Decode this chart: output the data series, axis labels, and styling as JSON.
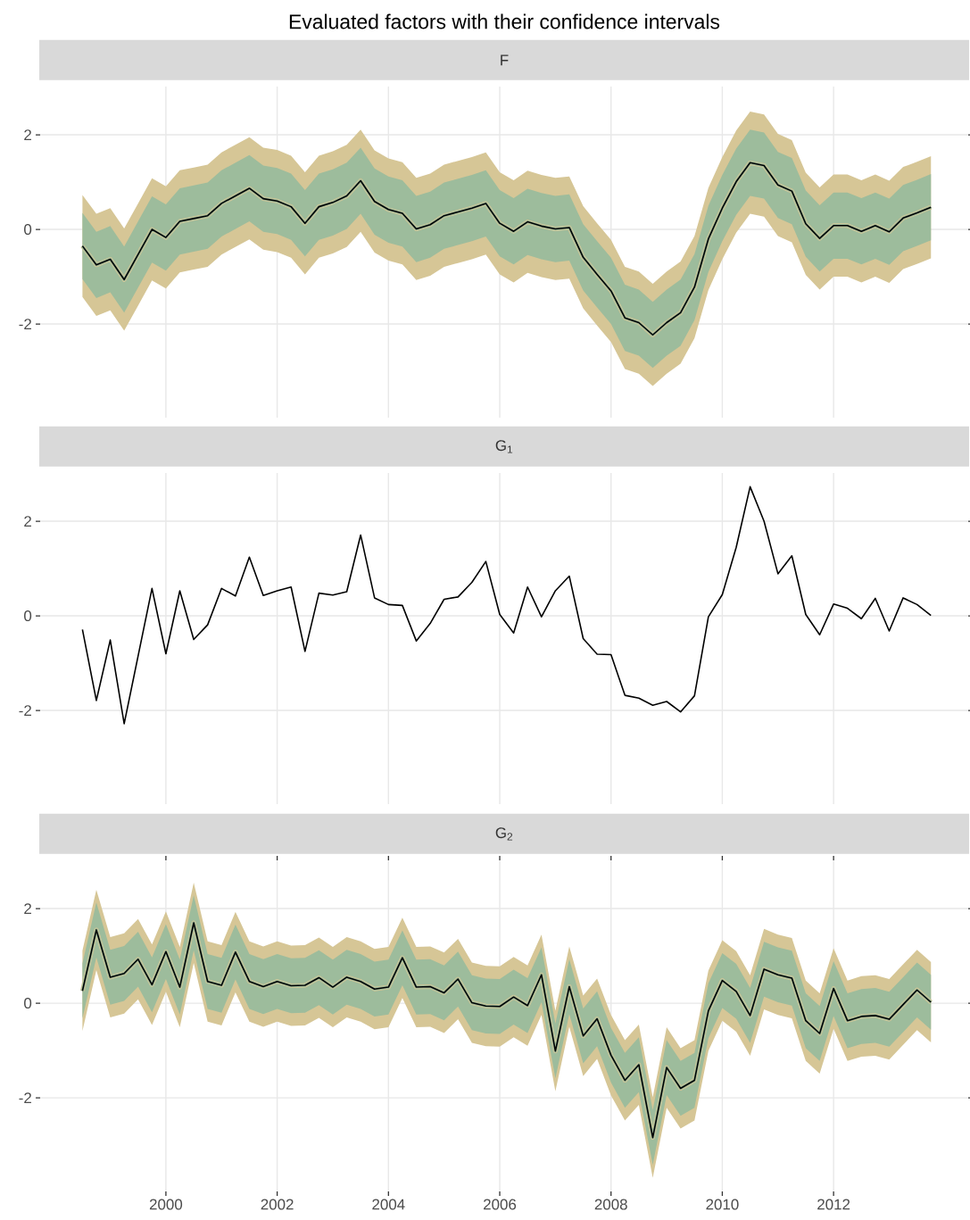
{
  "chart_data": [
    {
      "type": "line",
      "title": "Evaluated factors with their confidence intervals",
      "subtitle": "F",
      "grid": true,
      "tick_labels": "y",
      "xlim": [
        1997.74,
        2014.42
      ],
      "ylim": [
        -3.98,
        3.02
      ],
      "xticks": [
        2000,
        2002,
        2004,
        2006,
        2008,
        2010,
        2012
      ],
      "yticks": [
        -2,
        0,
        2
      ],
      "x": [
        1998.5,
        1998.75,
        1999,
        1999.25,
        1999.5,
        1999.75,
        2000,
        2000.25,
        2000.5,
        2000.75,
        2001,
        2001.25,
        2001.5,
        2001.75,
        2002,
        2002.25,
        2002.5,
        2002.75,
        2003,
        2003.25,
        2003.5,
        2003.75,
        2004,
        2004.25,
        2004.5,
        2004.75,
        2005,
        2005.25,
        2005.5,
        2005.75,
        2006,
        2006.25,
        2006.5,
        2006.75,
        2007,
        2007.25,
        2007.5,
        2007.75,
        2008,
        2008.25,
        2008.5,
        2008.75,
        2009,
        2009.25,
        2009.5,
        2009.75,
        2010,
        2010.25,
        2010.5,
        2010.75,
        2011,
        2011.25,
        2011.5,
        2011.75,
        2012,
        2012.25,
        2012.5,
        2012.75,
        2013,
        2013.25,
        2013.5,
        2013.75
      ],
      "series": [
        {
          "color": "#d6c696",
          "values": [
            -0.35,
            -0.75,
            -0.63,
            -1.06,
            -0.53,
            0.0,
            -0.17,
            0.17,
            0.23,
            0.29,
            0.55,
            0.71,
            0.87,
            0.65,
            0.6,
            0.48,
            0.13,
            0.48,
            0.57,
            0.71,
            1.03,
            0.59,
            0.42,
            0.34,
            0.01,
            0.1,
            0.29,
            0.37,
            0.45,
            0.55,
            0.13,
            -0.04,
            0.16,
            0.07,
            0.01,
            0.04,
            -0.59,
            -0.95,
            -1.3,
            -1.87,
            -1.97,
            -2.23,
            -1.97,
            -1.76,
            -1.22,
            -0.2,
            0.45,
            1.01,
            1.41,
            1.35,
            0.94,
            0.81,
            0.12,
            -0.19,
            0.08,
            0.08,
            -0.04,
            0.08,
            -0.05,
            0.24,
            0.35,
            0.47
          ],
          "upper": [
            0.73,
            0.33,
            0.45,
            0.02,
            0.55,
            1.08,
            0.91,
            1.25,
            1.31,
            1.37,
            1.63,
            1.79,
            1.95,
            1.73,
            1.68,
            1.56,
            1.21,
            1.56,
            1.65,
            1.79,
            2.11,
            1.67,
            1.5,
            1.42,
            1.09,
            1.18,
            1.37,
            1.45,
            1.53,
            1.63,
            1.21,
            1.04,
            1.24,
            1.15,
            1.09,
            1.12,
            0.49,
            0.13,
            -0.22,
            -0.79,
            -0.89,
            -1.15,
            -0.89,
            -0.68,
            -0.14,
            0.88,
            1.53,
            2.09,
            2.49,
            2.43,
            2.02,
            1.89,
            1.2,
            0.89,
            1.16,
            1.16,
            1.04,
            1.16,
            1.03,
            1.32,
            1.43,
            1.55
          ],
          "lower": [
            -1.43,
            -1.83,
            -1.71,
            -2.14,
            -1.61,
            -1.08,
            -1.25,
            -0.91,
            -0.85,
            -0.79,
            -0.53,
            -0.37,
            -0.21,
            -0.43,
            -0.48,
            -0.6,
            -0.95,
            -0.6,
            -0.51,
            -0.37,
            -0.05,
            -0.49,
            -0.66,
            -0.74,
            -1.07,
            -0.98,
            -0.79,
            -0.71,
            -0.63,
            -0.53,
            -0.95,
            -1.12,
            -0.92,
            -1.01,
            -1.07,
            -1.04,
            -1.67,
            -2.03,
            -2.38,
            -2.95,
            -3.05,
            -3.31,
            -3.05,
            -2.84,
            -2.3,
            -1.28,
            -0.63,
            -0.07,
            0.33,
            0.27,
            -0.14,
            -0.27,
            -0.96,
            -1.27,
            -1.0,
            -1.0,
            -1.12,
            -1.0,
            -1.13,
            -0.84,
            -0.73,
            -0.61
          ]
        },
        {
          "color": "#9dbc9c",
          "values": [
            -0.35,
            -0.75,
            -0.63,
            -1.06,
            -0.53,
            0.0,
            -0.17,
            0.17,
            0.23,
            0.29,
            0.55,
            0.71,
            0.87,
            0.65,
            0.6,
            0.48,
            0.13,
            0.48,
            0.57,
            0.71,
            1.03,
            0.59,
            0.42,
            0.34,
            0.01,
            0.1,
            0.29,
            0.37,
            0.45,
            0.55,
            0.13,
            -0.04,
            0.16,
            0.07,
            0.01,
            0.04,
            -0.59,
            -0.95,
            -1.3,
            -1.87,
            -1.97,
            -2.23,
            -1.97,
            -1.76,
            -1.22,
            -0.2,
            0.45,
            1.01,
            1.41,
            1.35,
            0.94,
            0.81,
            0.12,
            -0.19,
            0.08,
            0.08,
            -0.04,
            0.08,
            -0.05,
            0.24,
            0.35,
            0.47
          ],
          "upper": [
            0.35,
            -0.05,
            0.07,
            -0.36,
            0.17,
            0.7,
            0.53,
            0.87,
            0.93,
            0.99,
            1.25,
            1.41,
            1.57,
            1.35,
            1.3,
            1.18,
            0.83,
            1.18,
            1.27,
            1.41,
            1.73,
            1.29,
            1.12,
            1.04,
            0.71,
            0.8,
            0.99,
            1.07,
            1.15,
            1.25,
            0.83,
            0.66,
            0.86,
            0.77,
            0.71,
            0.74,
            0.11,
            -0.25,
            -0.6,
            -1.17,
            -1.27,
            -1.53,
            -1.27,
            -1.06,
            -0.52,
            0.5,
            1.15,
            1.71,
            2.11,
            2.05,
            1.64,
            1.51,
            0.82,
            0.51,
            0.78,
            0.78,
            0.66,
            0.78,
            0.65,
            0.94,
            1.05,
            1.17
          ],
          "lower": [
            -1.05,
            -1.45,
            -1.33,
            -1.76,
            -1.23,
            -0.7,
            -0.87,
            -0.53,
            -0.47,
            -0.41,
            -0.15,
            0.01,
            0.17,
            -0.05,
            -0.1,
            -0.22,
            -0.57,
            -0.22,
            -0.13,
            0.01,
            0.33,
            -0.11,
            -0.28,
            -0.36,
            -0.69,
            -0.6,
            -0.41,
            -0.33,
            -0.25,
            -0.15,
            -0.57,
            -0.74,
            -0.54,
            -0.63,
            -0.69,
            -0.66,
            -1.29,
            -1.65,
            -2.0,
            -2.57,
            -2.67,
            -2.93,
            -2.67,
            -2.46,
            -1.92,
            -0.9,
            -0.25,
            0.31,
            0.71,
            0.65,
            0.24,
            0.11,
            -0.58,
            -0.89,
            -0.62,
            -0.62,
            -0.74,
            -0.62,
            -0.75,
            -0.46,
            -0.35,
            -0.23
          ]
        },
        {
          "color": "#000000",
          "values": [
            -0.35,
            -0.75,
            -0.63,
            -1.06,
            -0.53,
            0.0,
            -0.17,
            0.17,
            0.23,
            0.29,
            0.55,
            0.71,
            0.87,
            0.65,
            0.6,
            0.48,
            0.13,
            0.48,
            0.57,
            0.71,
            1.03,
            0.59,
            0.42,
            0.34,
            0.01,
            0.1,
            0.29,
            0.37,
            0.45,
            0.55,
            0.13,
            -0.04,
            0.16,
            0.07,
            0.01,
            0.04,
            -0.59,
            -0.95,
            -1.3,
            -1.87,
            -1.97,
            -2.23,
            -1.97,
            -1.76,
            -1.22,
            -0.2,
            0.45,
            1.01,
            1.41,
            1.35,
            0.94,
            0.81,
            0.12,
            -0.19,
            0.08,
            0.08,
            -0.04,
            0.08,
            -0.05,
            0.24,
            0.35,
            0.47
          ]
        }
      ]
    },
    {
      "type": "line",
      "subtitle": "G$_{1}$",
      "grid": true,
      "tick_labels": "y",
      "xlim": [
        1997.74,
        2014.42
      ],
      "ylim": [
        -3.98,
        3.02
      ],
      "xticks": [
        2000,
        2002,
        2004,
        2006,
        2008,
        2010,
        2012
      ],
      "yticks": [
        -2,
        0,
        2
      ],
      "x": [
        1998.5,
        1998.75,
        1999,
        1999.25,
        1999.5,
        1999.75,
        2000,
        2000.25,
        2000.5,
        2000.75,
        2001,
        2001.25,
        2001.5,
        2001.75,
        2002,
        2002.25,
        2002.5,
        2002.75,
        2003,
        2003.25,
        2003.5,
        2003.75,
        2004,
        2004.25,
        2004.5,
        2004.75,
        2005,
        2005.25,
        2005.5,
        2005.75,
        2006,
        2006.25,
        2006.5,
        2006.75,
        2007,
        2007.25,
        2007.5,
        2007.75,
        2008,
        2008.25,
        2008.5,
        2008.75,
        2009,
        2009.25,
        2009.5,
        2009.75,
        2010,
        2010.25,
        2010.5,
        2010.75,
        2011,
        2011.25,
        2011.5,
        2011.75,
        2012,
        2012.25,
        2012.5,
        2012.75,
        2013,
        2013.25,
        2013.5,
        2013.75
      ],
      "series": [
        {
          "color": "#000000",
          "values": [
            -0.29,
            -1.79,
            -0.51,
            -2.28,
            -0.85,
            0.58,
            -0.8,
            0.53,
            -0.5,
            -0.19,
            0.58,
            0.42,
            1.24,
            0.43,
            0.53,
            0.61,
            -0.75,
            0.48,
            0.44,
            0.51,
            1.71,
            0.38,
            0.24,
            0.22,
            -0.53,
            -0.16,
            0.35,
            0.4,
            0.71,
            1.15,
            0.03,
            -0.36,
            0.61,
            -0.02,
            0.53,
            0.84,
            -0.48,
            -0.81,
            -0.82,
            -1.68,
            -1.74,
            -1.89,
            -1.81,
            -2.03,
            -1.69,
            -0.02,
            0.45,
            1.45,
            2.73,
            2.0,
            0.89,
            1.27,
            0.03,
            -0.4,
            0.25,
            0.16,
            -0.06,
            0.37,
            -0.32,
            0.38,
            0.24,
            0.01
          ]
        }
      ]
    },
    {
      "type": "line",
      "subtitle": "G$_{2}$",
      "grid": true,
      "xlim": [
        1997.74,
        2014.42
      ],
      "ylim": [
        -3.98,
        3.02
      ],
      "xticks": [
        2000,
        2002,
        2004,
        2006,
        2008,
        2010,
        2012
      ],
      "yticks": [
        -2,
        0,
        2
      ],
      "x": [
        1998.5,
        1998.75,
        1999,
        1999.25,
        1999.5,
        1999.75,
        2000,
        2000.25,
        2000.5,
        2000.75,
        2001,
        2001.25,
        2001.5,
        2001.75,
        2002,
        2002.25,
        2002.5,
        2002.75,
        2003,
        2003.25,
        2003.5,
        2003.75,
        2004,
        2004.25,
        2004.5,
        2004.75,
        2005,
        2005.25,
        2005.5,
        2005.75,
        2006,
        2006.25,
        2006.5,
        2006.75,
        2007,
        2007.25,
        2007.5,
        2007.75,
        2008,
        2008.25,
        2008.5,
        2008.75,
        2009,
        2009.25,
        2009.5,
        2009.75,
        2010,
        2010.25,
        2010.5,
        2010.75,
        2011,
        2011.25,
        2011.5,
        2011.75,
        2012,
        2012.25,
        2012.5,
        2012.75,
        2013,
        2013.25,
        2013.5,
        2013.75
      ],
      "series": [
        {
          "color": "#d6c696",
          "values": [
            0.26,
            1.55,
            0.55,
            0.63,
            0.93,
            0.39,
            1.09,
            0.34,
            1.7,
            0.46,
            0.38,
            1.08,
            0.46,
            0.35,
            0.46,
            0.37,
            0.38,
            0.54,
            0.34,
            0.55,
            0.46,
            0.3,
            0.34,
            0.96,
            0.34,
            0.35,
            0.22,
            0.51,
            0.01,
            -0.06,
            -0.07,
            0.13,
            -0.05,
            0.6,
            -1.01,
            0.35,
            -0.69,
            -0.33,
            -1.1,
            -1.63,
            -1.3,
            -2.84,
            -1.36,
            -1.8,
            -1.63,
            -0.16,
            0.48,
            0.25,
            -0.26,
            0.72,
            0.6,
            0.53,
            -0.37,
            -0.64,
            0.31,
            -0.37,
            -0.28,
            -0.26,
            -0.34,
            -0.03,
            0.28,
            0.02
          ],
          "upper": [
            1.11,
            2.4,
            1.4,
            1.48,
            1.78,
            1.24,
            1.94,
            1.19,
            2.55,
            1.31,
            1.23,
            1.93,
            1.31,
            1.2,
            1.31,
            1.22,
            1.23,
            1.39,
            1.19,
            1.4,
            1.31,
            1.15,
            1.19,
            1.81,
            1.19,
            1.2,
            1.07,
            1.36,
            0.86,
            0.79,
            0.78,
            0.98,
            0.8,
            1.45,
            -0.16,
            1.2,
            0.16,
            0.52,
            -0.25,
            -0.78,
            -0.45,
            -1.99,
            -0.51,
            -0.95,
            -0.78,
            0.69,
            1.33,
            1.1,
            0.59,
            1.57,
            1.45,
            1.38,
            0.48,
            0.21,
            1.16,
            0.48,
            0.57,
            0.59,
            0.51,
            0.82,
            1.13,
            0.87
          ],
          "lower": [
            -0.59,
            0.7,
            -0.3,
            -0.22,
            0.08,
            -0.46,
            0.24,
            -0.51,
            0.85,
            -0.39,
            -0.47,
            0.23,
            -0.39,
            -0.5,
            -0.39,
            -0.48,
            -0.47,
            -0.31,
            -0.51,
            -0.3,
            -0.39,
            -0.55,
            -0.51,
            0.11,
            -0.51,
            -0.5,
            -0.63,
            -0.34,
            -0.84,
            -0.91,
            -0.92,
            -0.72,
            -0.9,
            -0.25,
            -1.86,
            -0.5,
            -1.54,
            -1.18,
            -1.95,
            -2.48,
            -2.15,
            -3.69,
            -2.21,
            -2.65,
            -2.48,
            -1.01,
            -0.37,
            -0.6,
            -1.11,
            -0.13,
            -0.25,
            -0.32,
            -1.22,
            -1.49,
            -0.54,
            -1.22,
            -1.13,
            -1.11,
            -1.19,
            -0.88,
            -0.57,
            -0.83
          ]
        },
        {
          "color": "#9dbc9c",
          "values": [
            0.26,
            1.55,
            0.55,
            0.63,
            0.93,
            0.39,
            1.09,
            0.34,
            1.7,
            0.46,
            0.38,
            1.08,
            0.46,
            0.35,
            0.46,
            0.37,
            0.38,
            0.54,
            0.34,
            0.55,
            0.46,
            0.3,
            0.34,
            0.96,
            0.34,
            0.35,
            0.22,
            0.51,
            0.01,
            -0.06,
            -0.07,
            0.13,
            -0.05,
            0.6,
            -1.01,
            0.35,
            -0.69,
            -0.33,
            -1.1,
            -1.63,
            -1.3,
            -2.84,
            -1.36,
            -1.8,
            -1.63,
            -0.16,
            0.48,
            0.25,
            -0.26,
            0.72,
            0.6,
            0.53,
            -0.37,
            -0.64,
            0.31,
            -0.37,
            -0.28,
            -0.26,
            -0.34,
            -0.03,
            0.28,
            0.02
          ],
          "upper": [
            0.84,
            2.13,
            1.13,
            1.21,
            1.51,
            0.97,
            1.67,
            0.92,
            2.28,
            1.04,
            0.96,
            1.66,
            1.04,
            0.93,
            1.04,
            0.95,
            0.96,
            1.12,
            0.92,
            1.13,
            1.04,
            0.88,
            0.92,
            1.54,
            0.92,
            0.93,
            0.8,
            1.09,
            0.59,
            0.52,
            0.51,
            0.71,
            0.53,
            1.18,
            -0.43,
            0.93,
            -0.11,
            0.25,
            -0.52,
            -1.05,
            -0.72,
            -2.26,
            -0.78,
            -1.22,
            -1.05,
            0.42,
            1.06,
            0.83,
            0.32,
            1.3,
            1.18,
            1.11,
            0.21,
            -0.06,
            0.89,
            0.21,
            0.3,
            0.32,
            0.24,
            0.55,
            0.86,
            0.6
          ],
          "lower": [
            -0.32,
            0.97,
            -0.03,
            0.05,
            0.35,
            -0.19,
            0.51,
            -0.24,
            1.12,
            -0.12,
            -0.2,
            0.5,
            -0.12,
            -0.23,
            -0.12,
            -0.21,
            -0.2,
            -0.04,
            -0.24,
            -0.03,
            -0.12,
            -0.28,
            -0.24,
            0.38,
            -0.24,
            -0.23,
            -0.36,
            -0.07,
            -0.57,
            -0.64,
            -0.65,
            -0.45,
            -0.63,
            0.02,
            -1.59,
            -0.23,
            -1.27,
            -0.91,
            -1.68,
            -2.21,
            -1.88,
            -3.42,
            -1.94,
            -2.38,
            -2.21,
            -0.74,
            -0.1,
            -0.33,
            -0.84,
            0.14,
            0.02,
            -0.05,
            -0.95,
            -1.22,
            -0.27,
            -0.95,
            -0.86,
            -0.84,
            -0.92,
            -0.61,
            -0.3,
            -0.56
          ]
        },
        {
          "color": "#000000",
          "values": [
            0.26,
            1.55,
            0.55,
            0.63,
            0.93,
            0.39,
            1.09,
            0.34,
            1.7,
            0.46,
            0.38,
            1.08,
            0.46,
            0.35,
            0.46,
            0.37,
            0.38,
            0.54,
            0.34,
            0.55,
            0.46,
            0.3,
            0.34,
            0.96,
            0.34,
            0.35,
            0.22,
            0.51,
            0.01,
            -0.06,
            -0.07,
            0.13,
            -0.05,
            0.6,
            -1.01,
            0.35,
            -0.69,
            -0.33,
            -1.1,
            -1.63,
            -1.3,
            -2.84,
            -1.36,
            -1.8,
            -1.63,
            -0.16,
            0.48,
            0.25,
            -0.26,
            0.72,
            0.6,
            0.53,
            -0.37,
            -0.64,
            0.31,
            -0.37,
            -0.28,
            -0.26,
            -0.34,
            -0.03,
            0.28,
            0.02
          ]
        }
      ]
    }
  ]
}
